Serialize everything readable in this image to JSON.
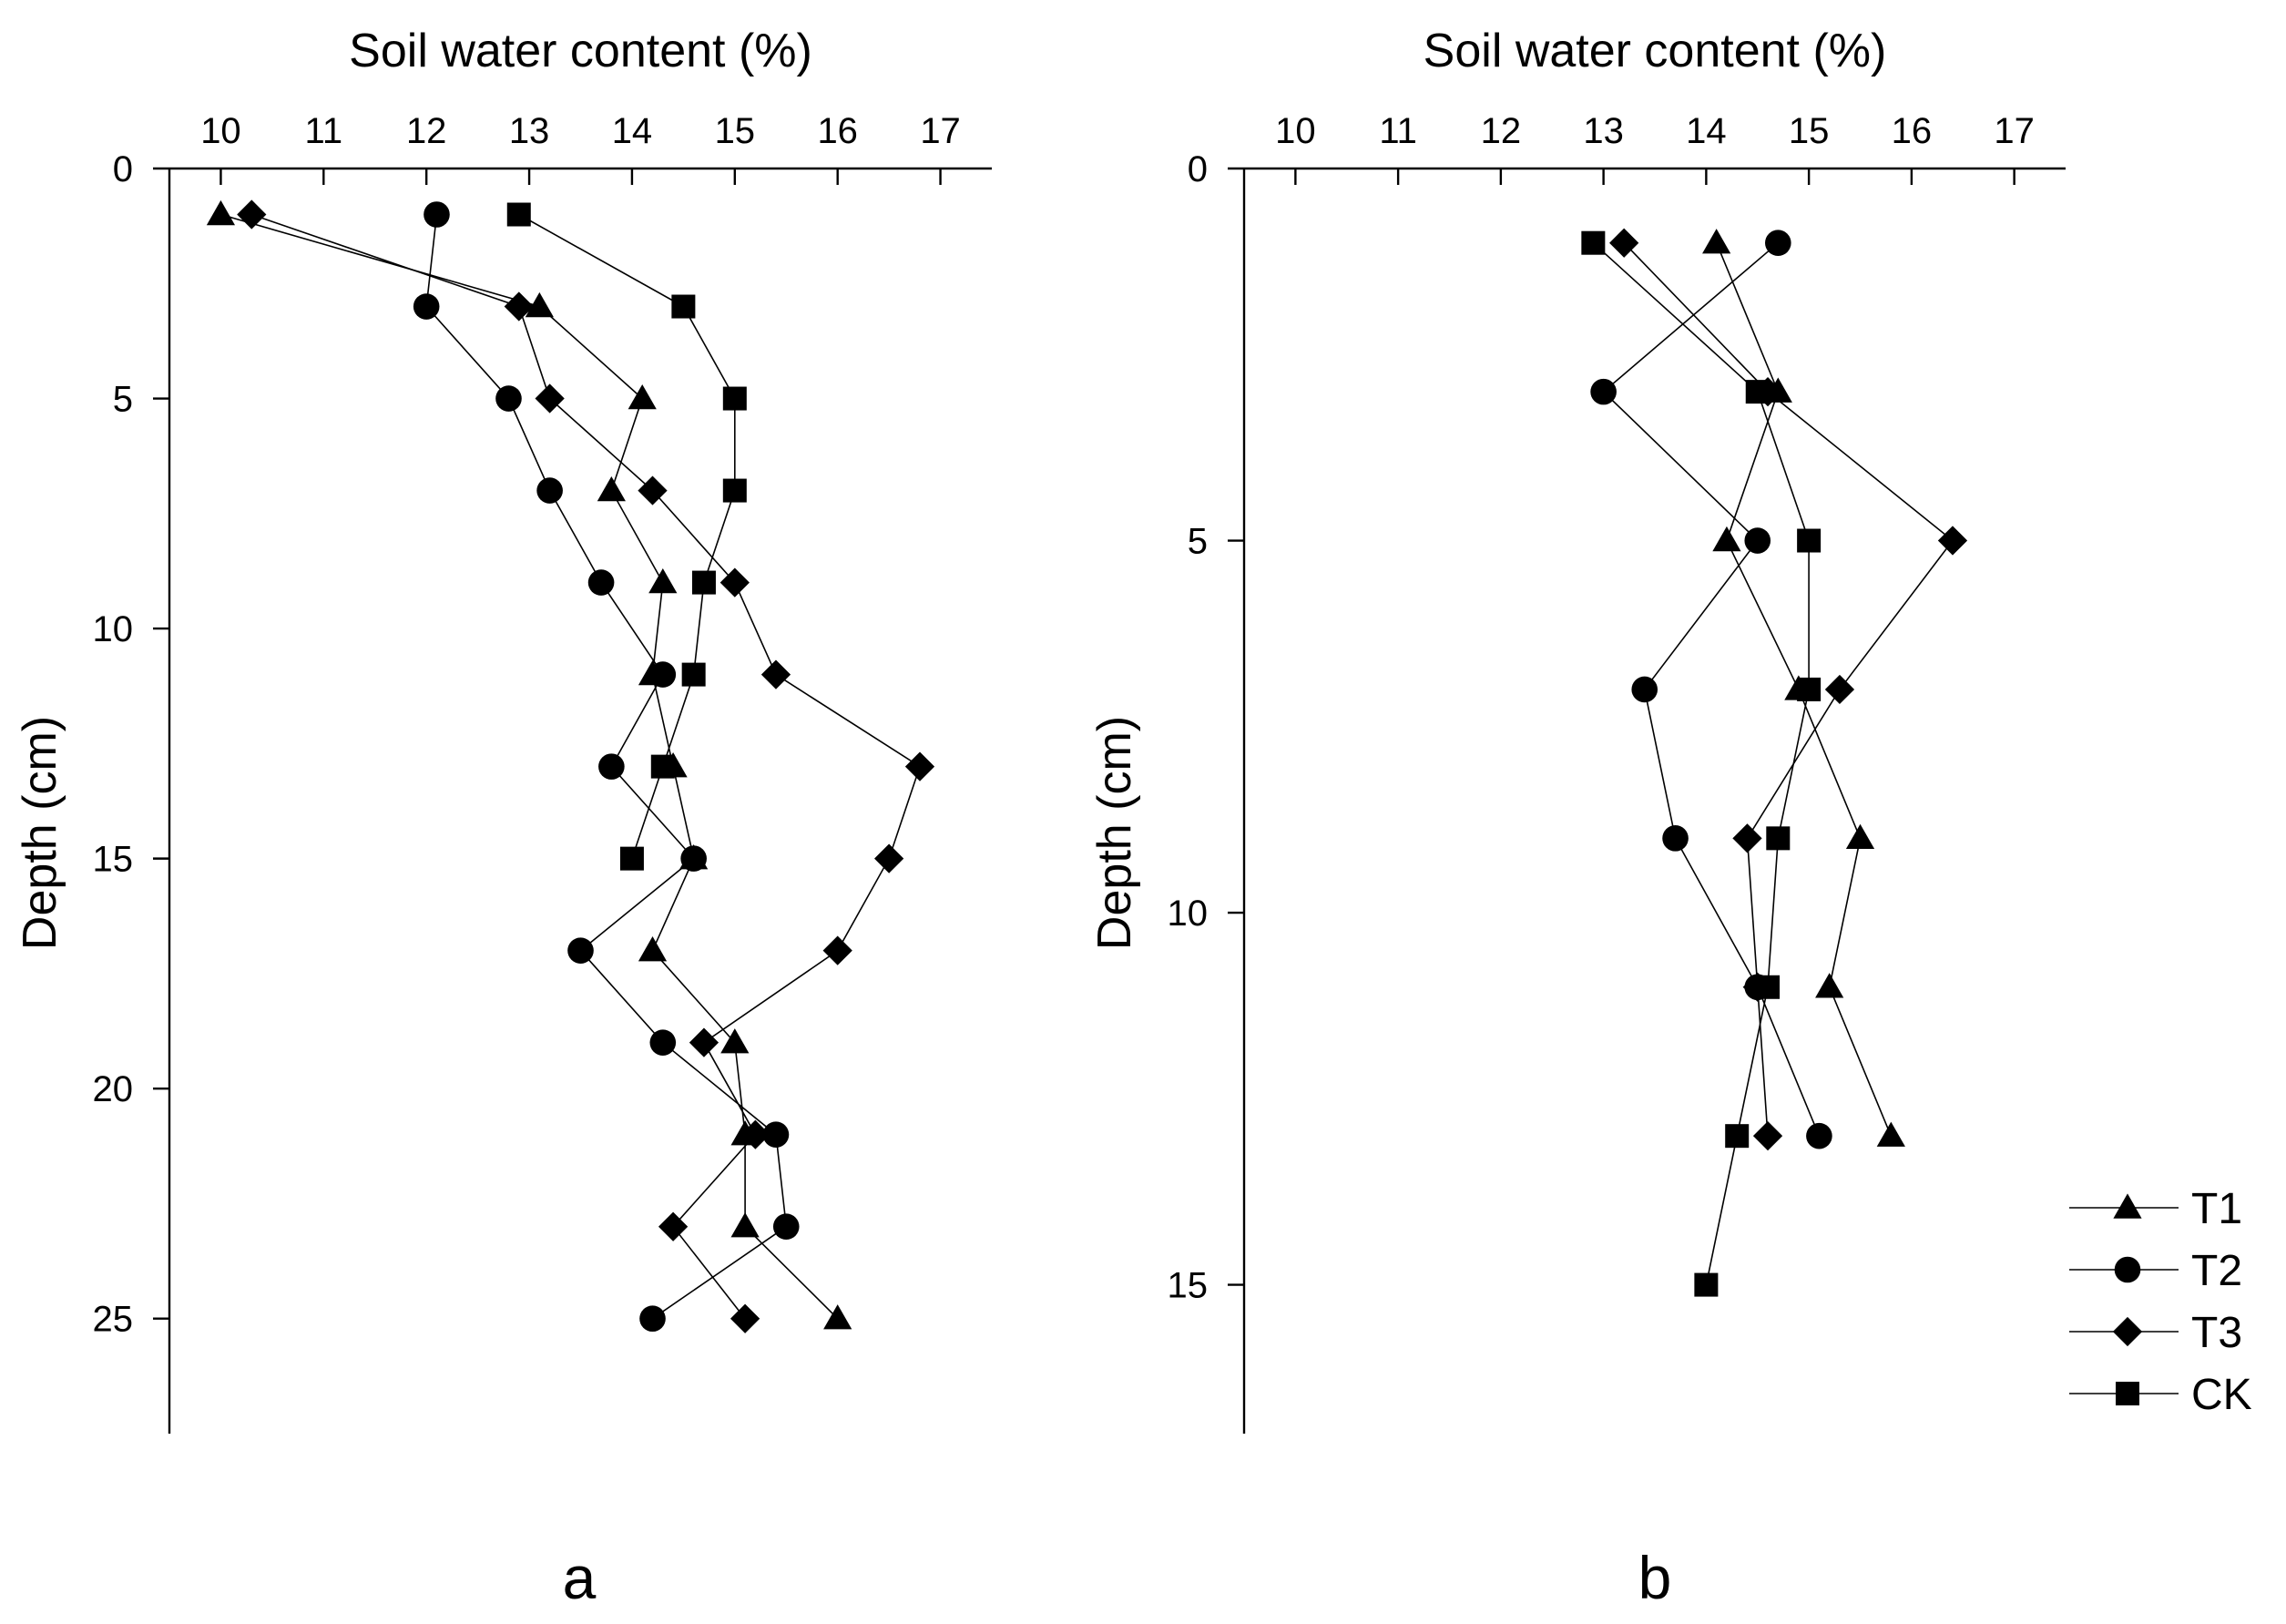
{
  "chart_data": [
    {
      "type": "line",
      "xlabel": "Soil water content (%)",
      "ylabel": "Depth (cm)",
      "panel_label": "a",
      "x_tick_labels": [
        "10",
        "11",
        "12",
        "13",
        "14",
        "15",
        "16",
        "17"
      ],
      "y_tick_labels": [
        "0",
        "5",
        "10",
        "15",
        "20",
        "25"
      ],
      "xlim": [
        9.5,
        17.5
      ],
      "ylim": [
        0,
        27.5
      ],
      "x_axis_position": "top",
      "y_inverted": true,
      "grid": false,
      "series": [
        {
          "name": "T1",
          "marker": "triangle",
          "points": [
            [
              10.0,
              1
            ],
            [
              13.1,
              3
            ],
            [
              14.1,
              5
            ],
            [
              13.8,
              7
            ],
            [
              14.3,
              9
            ],
            [
              14.2,
              11
            ],
            [
              14.4,
              13
            ],
            [
              14.6,
              15
            ],
            [
              14.2,
              17
            ],
            [
              15.0,
              19
            ],
            [
              15.1,
              21
            ],
            [
              15.1,
              23
            ],
            [
              16.0,
              25
            ]
          ]
        },
        {
          "name": "T2",
          "marker": "circle",
          "points": [
            [
              12.1,
              1
            ],
            [
              12.0,
              3
            ],
            [
              12.8,
              5
            ],
            [
              13.2,
              7
            ],
            [
              13.7,
              9
            ],
            [
              14.3,
              11
            ],
            [
              13.8,
              13
            ],
            [
              14.6,
              15
            ],
            [
              13.5,
              17
            ],
            [
              14.3,
              19
            ],
            [
              15.4,
              21
            ],
            [
              15.5,
              23
            ],
            [
              14.2,
              25
            ]
          ]
        },
        {
          "name": "T3",
          "marker": "diamond",
          "points": [
            [
              10.3,
              1
            ],
            [
              12.9,
              3
            ],
            [
              13.2,
              5
            ],
            [
              14.2,
              7
            ],
            [
              15.0,
              9
            ],
            [
              15.4,
              11
            ],
            [
              16.8,
              13
            ],
            [
              16.5,
              15
            ],
            [
              16.0,
              17
            ],
            [
              14.7,
              19
            ],
            [
              15.2,
              21
            ],
            [
              14.4,
              23
            ],
            [
              15.1,
              25
            ]
          ]
        },
        {
          "name": "CK",
          "marker": "square",
          "points": [
            [
              12.9,
              1
            ],
            [
              14.5,
              3
            ],
            [
              15.0,
              5
            ],
            [
              15.0,
              7
            ],
            [
              14.7,
              9
            ],
            [
              14.6,
              11
            ],
            [
              14.3,
              13
            ],
            [
              14.0,
              15
            ]
          ]
        }
      ]
    },
    {
      "type": "line",
      "xlabel": "Soil water content (%)",
      "ylabel": "Depth (cm)",
      "panel_label": "b",
      "x_tick_labels": [
        "10",
        "11",
        "12",
        "13",
        "14",
        "15",
        "16",
        "17"
      ],
      "y_tick_labels": [
        "0",
        "5",
        "10",
        "15"
      ],
      "xlim": [
        9.5,
        17.5
      ],
      "ylim": [
        0,
        17
      ],
      "x_axis_position": "top",
      "y_inverted": true,
      "grid": false,
      "legend_position": "bottom-right",
      "series": [
        {
          "name": "T1",
          "marker": "triangle",
          "points": [
            [
              14.1,
              1
            ],
            [
              14.7,
              3
            ],
            [
              14.2,
              5
            ],
            [
              14.9,
              7
            ],
            [
              15.5,
              9
            ],
            [
              15.2,
              11
            ],
            [
              15.8,
              13
            ]
          ]
        },
        {
          "name": "T2",
          "marker": "circle",
          "points": [
            [
              14.7,
              1
            ],
            [
              13.0,
              3
            ],
            [
              14.5,
              5
            ],
            [
              13.4,
              7
            ],
            [
              13.7,
              9
            ],
            [
              14.5,
              11
            ],
            [
              15.1,
              13
            ]
          ]
        },
        {
          "name": "T3",
          "marker": "diamond",
          "points": [
            [
              13.2,
              1
            ],
            [
              14.6,
              3
            ],
            [
              16.4,
              5
            ],
            [
              15.3,
              7
            ],
            [
              14.4,
              9
            ],
            [
              14.5,
              11
            ],
            [
              14.6,
              13
            ]
          ]
        },
        {
          "name": "CK",
          "marker": "square",
          "points": [
            [
              12.9,
              1
            ],
            [
              14.5,
              3
            ],
            [
              15.0,
              5
            ],
            [
              15.0,
              7
            ],
            [
              14.7,
              9
            ],
            [
              14.6,
              11
            ],
            [
              14.3,
              13
            ],
            [
              14.0,
              15
            ]
          ]
        }
      ]
    }
  ]
}
